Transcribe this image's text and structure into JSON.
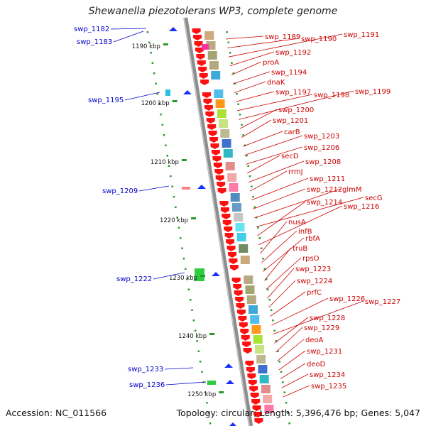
{
  "title": "Shewanella piezotolerans WP3, complete genome",
  "footer": {
    "accession": "Accession: NC_011566",
    "summary": "Topology: circular; Length: 5,396,476 bp; Genes: 5,047"
  },
  "colors": {
    "left_label": "#0000cc",
    "right_label": "#cc0000",
    "scale_tick": "#2a9a2a",
    "backbone": "#8c8c8c"
  },
  "scale_labels": [
    "1190 kbp",
    "1200 kbp",
    "1210 kbp",
    "1220 kbp",
    "1230 kbp",
    "1240 kbp",
    "1250 kbp"
  ],
  "left_genes": [
    "swp_1182",
    "swp_1183",
    "swp_1195",
    "swp_1209",
    "swp_1222",
    "swp_1233",
    "swp_1236"
  ],
  "right_genes": [
    "swp_1189",
    "swp_1190",
    "swp_1191",
    "swp_1192",
    "proA",
    "swp_1194",
    "dnaK",
    "swp_1197",
    "swp_1198",
    "swp_1199",
    "swp_1200",
    "swp_1201",
    "carB",
    "swp_1203",
    "swp_1206",
    "secD",
    "swp_1208",
    "rrmJ",
    "swp_1211",
    "swp_1212",
    "glmM",
    "secG",
    "swp_1214",
    "swp_1216",
    "nusA",
    "infB",
    "rbfA",
    "truB",
    "rpsO",
    "swp_1223",
    "swp_1224",
    "prfC",
    "swp_1226",
    "swp_1227",
    "swp_1228",
    "swp_1229",
    "deoA",
    "swp_1231",
    "deoD",
    "swp_1234",
    "swp_1235"
  ]
}
